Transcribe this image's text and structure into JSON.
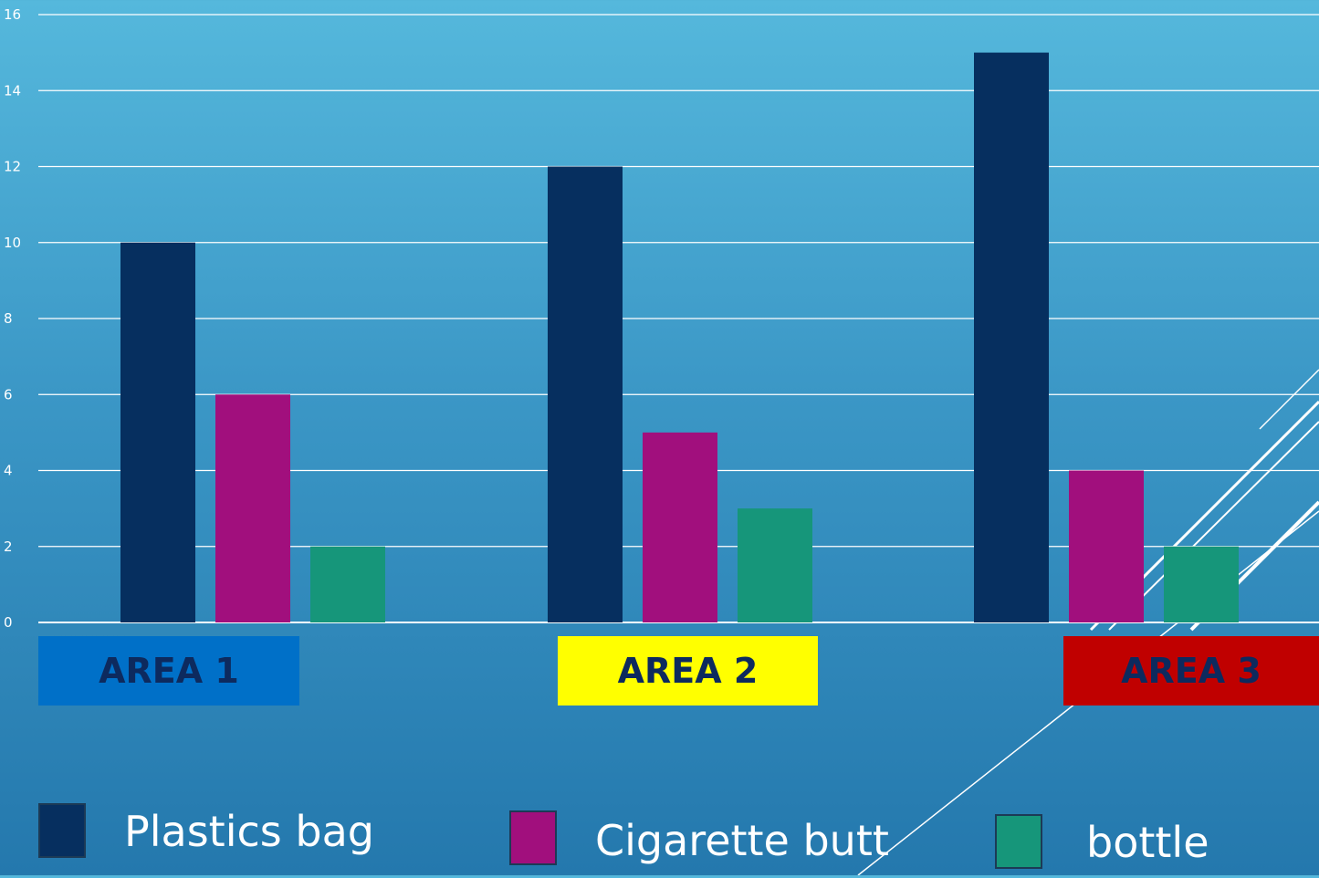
{
  "chart_data": {
    "type": "bar",
    "categories": [
      "AREA 1",
      "AREA 2",
      "AREA 3"
    ],
    "series": [
      {
        "name": "Plastics bag",
        "values": [
          10,
          12,
          15
        ],
        "color": "#062f5f"
      },
      {
        "name": "Cigarette butt",
        "values": [
          6,
          5,
          4
        ],
        "color": "#a10f7d"
      },
      {
        "name": "bottle",
        "values": [
          2,
          3,
          2
        ],
        "color": "#16967a"
      }
    ],
    "ylim": [
      0,
      16
    ],
    "yticks": [
      "0",
      "2",
      "4",
      "6",
      "8",
      "10",
      "12",
      "14",
      "16"
    ],
    "grid": true,
    "legend_position": "bottom",
    "category_label_colors": [
      "#0070c8",
      "#ffff00",
      "#c00000"
    ],
    "title": "",
    "xlabel": "",
    "ylabel": ""
  }
}
